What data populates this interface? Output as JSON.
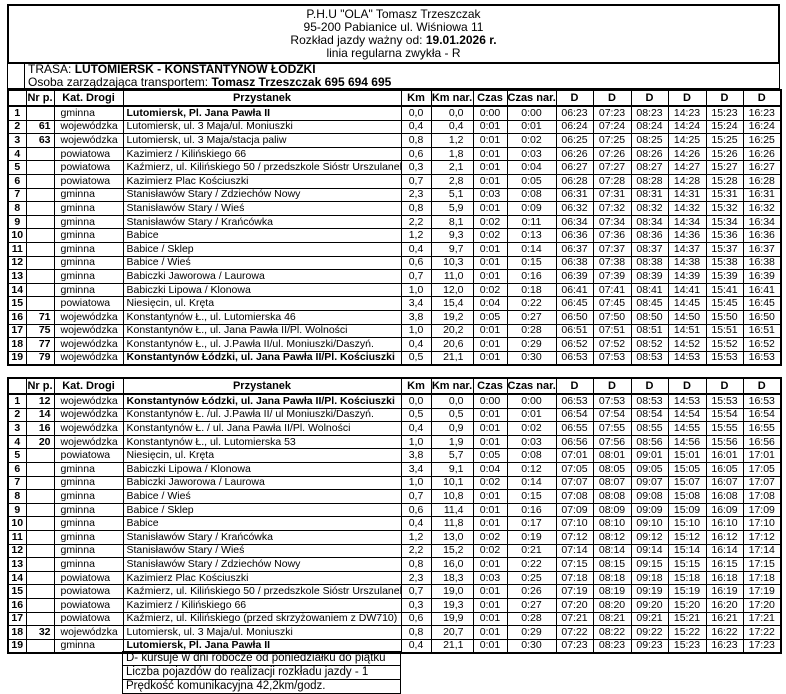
{
  "document": {
    "company": "P.H.U  \"OLA\" Tomasz Trzeszczak",
    "address": "95-200 Pabianice ul. Wiśniowa 11",
    "valid_from_label": "Rozkład jazdy ważny od:",
    "valid_from_date": "19.01.2026 r.",
    "line_type": "linia regularna zwykła - R"
  },
  "route": {
    "trasa_label": "TRASA:",
    "trasa_value": "LUTOMIERSK - KONSTANTYNÓW ŁÓDZKI",
    "manager_label": "Osoba zarządzająca transportem:",
    "manager_value": "Tomasz Trzeszczak 695 694 695"
  },
  "columns": [
    "",
    "Nr p.",
    "Kat. Drogi",
    "Przystanek",
    "Km",
    "Km nar.",
    "Czas",
    "Czas nar.",
    "D",
    "D",
    "D",
    "D",
    "D",
    "D"
  ],
  "tables": [
    {
      "rows": [
        {
          "no": "1",
          "nr": "",
          "kat": "gminna",
          "stop": "Lutomiersk, Pl. Jana Pawła II",
          "bold": true,
          "km": "0,0",
          "km_nar": "0,0",
          "czas": "0:00",
          "czas_nar": "0:00",
          "times": [
            "06:23",
            "07:23",
            "08:23",
            "14:23",
            "15:23",
            "16:23"
          ]
        },
        {
          "no": "2",
          "nr": "61",
          "kat": "wojewódzka",
          "stop": "Lutomiersk, ul. 3 Maja/ul. Moniuszki",
          "km": "0,4",
          "km_nar": "0,4",
          "czas": "0:01",
          "czas_nar": "0:01",
          "times": [
            "06:24",
            "07:24",
            "08:24",
            "14:24",
            "15:24",
            "16:24"
          ]
        },
        {
          "no": "3",
          "nr": "63",
          "kat": "wojewódzka",
          "stop": "Lutomiersk, ul. 3 Maja/stacja paliw",
          "km": "0,8",
          "km_nar": "1,2",
          "czas": "0:01",
          "czas_nar": "0:02",
          "times": [
            "06:25",
            "07:25",
            "08:25",
            "14:25",
            "15:25",
            "16:25"
          ]
        },
        {
          "no": "4",
          "nr": "",
          "kat": "powiatowa",
          "stop": "Kazimierz / Kilińskiego 66",
          "km": "0,6",
          "km_nar": "1,8",
          "czas": "0:01",
          "czas_nar": "0:03",
          "times": [
            "06:26",
            "07:26",
            "08:26",
            "14:26",
            "15:26",
            "16:26"
          ]
        },
        {
          "no": "5",
          "nr": "",
          "kat": "powiatowa",
          "stop": "Kaźmierz, ul. Kilińskiego 50 / przedszkole Sióstr Urszulanek",
          "km": "0,3",
          "km_nar": "2,1",
          "czas": "0:01",
          "czas_nar": "0:04",
          "times": [
            "06:27",
            "07:27",
            "08:27",
            "14:27",
            "15:27",
            "16:27"
          ]
        },
        {
          "no": "6",
          "nr": "",
          "kat": "powiatowa",
          "stop": "Kazimierz Plac Kościuszki",
          "km": "0,7",
          "km_nar": "2,8",
          "czas": "0:01",
          "czas_nar": "0:05",
          "times": [
            "06:28",
            "07:28",
            "08:28",
            "14:28",
            "15:28",
            "16:28"
          ]
        },
        {
          "no": "7",
          "nr": "",
          "kat": "gminna",
          "stop": "Stanisławów Stary / Zdziechów Nowy",
          "km": "2,3",
          "km_nar": "5,1",
          "czas": "0:03",
          "czas_nar": "0:08",
          "times": [
            "06:31",
            "07:31",
            "08:31",
            "14:31",
            "15:31",
            "16:31"
          ]
        },
        {
          "no": "8",
          "nr": "",
          "kat": "gminna",
          "stop": "Stanisławów Stary / Wieś",
          "km": "0,8",
          "km_nar": "5,9",
          "czas": "0:01",
          "czas_nar": "0:09",
          "times": [
            "06:32",
            "07:32",
            "08:32",
            "14:32",
            "15:32",
            "16:32"
          ]
        },
        {
          "no": "9",
          "nr": "",
          "kat": "gminna",
          "stop": "Stanisławów Stary / Krańcówka",
          "km": "2,2",
          "km_nar": "8,1",
          "czas": "0:02",
          "czas_nar": "0:11",
          "times": [
            "06:34",
            "07:34",
            "08:34",
            "14:34",
            "15:34",
            "16:34"
          ]
        },
        {
          "no": "10",
          "nr": "",
          "kat": "gminna",
          "stop": "Babice",
          "km": "1,2",
          "km_nar": "9,3",
          "czas": "0:02",
          "czas_nar": "0:13",
          "times": [
            "06:36",
            "07:36",
            "08:36",
            "14:36",
            "15:36",
            "16:36"
          ]
        },
        {
          "no": "11",
          "nr": "",
          "kat": "gminna",
          "stop": "Babice / Sklep",
          "km": "0,4",
          "km_nar": "9,7",
          "czas": "0:01",
          "czas_nar": "0:14",
          "times": [
            "06:37",
            "07:37",
            "08:37",
            "14:37",
            "15:37",
            "16:37"
          ]
        },
        {
          "no": "12",
          "nr": "",
          "kat": "gminna",
          "stop": "Babice / Wieś",
          "km": "0,6",
          "km_nar": "10,3",
          "czas": "0:01",
          "czas_nar": "0:15",
          "times": [
            "06:38",
            "07:38",
            "08:38",
            "14:38",
            "15:38",
            "16:38"
          ]
        },
        {
          "no": "13",
          "nr": "",
          "kat": "gminna",
          "stop": "Babiczki Jaworowa / Laurowa",
          "km": "0,7",
          "km_nar": "11,0",
          "czas": "0:01",
          "czas_nar": "0:16",
          "times": [
            "06:39",
            "07:39",
            "08:39",
            "14:39",
            "15:39",
            "16:39"
          ]
        },
        {
          "no": "14",
          "nr": "",
          "kat": "gminna",
          "stop": "Babiczki Lipowa / Klonowa",
          "km": "1,0",
          "km_nar": "12,0",
          "czas": "0:02",
          "czas_nar": "0:18",
          "times": [
            "06:41",
            "07:41",
            "08:41",
            "14:41",
            "15:41",
            "16:41"
          ]
        },
        {
          "no": "15",
          "nr": "",
          "kat": "powiatowa",
          "stop": "Niesięcin, ul. Kręta",
          "km": "3,4",
          "km_nar": "15,4",
          "czas": "0:04",
          "czas_nar": "0:22",
          "times": [
            "06:45",
            "07:45",
            "08:45",
            "14:45",
            "15:45",
            "16:45"
          ]
        },
        {
          "no": "16",
          "nr": "71",
          "kat": "wojewódzka",
          "stop": "Konstantynów Ł., ul. Lutomierska 46",
          "km": "3,8",
          "km_nar": "19,2",
          "czas": "0:05",
          "czas_nar": "0:27",
          "times": [
            "06:50",
            "07:50",
            "08:50",
            "14:50",
            "15:50",
            "16:50"
          ]
        },
        {
          "no": "17",
          "nr": "75",
          "kat": "wojewódzka",
          "stop": "Konstantynów Ł., ul. Jana Pawła II/Pl. Wolności",
          "km": "1,0",
          "km_nar": "20,2",
          "czas": "0:01",
          "czas_nar": "0:28",
          "times": [
            "06:51",
            "07:51",
            "08:51",
            "14:51",
            "15:51",
            "16:51"
          ]
        },
        {
          "no": "18",
          "nr": "77",
          "kat": "wojewódzka",
          "stop": "Konstantynów Ł., ul. J.Pawła II/ul. Moniuszki/Daszyń.",
          "km": "0,4",
          "km_nar": "20,6",
          "czas": "0:01",
          "czas_nar": "0:29",
          "times": [
            "06:52",
            "07:52",
            "08:52",
            "14:52",
            "15:52",
            "16:52"
          ]
        },
        {
          "no": "19",
          "nr": "79",
          "kat": "wojewódzka",
          "stop": "Konstantynów Łódzki, ul. Jana Pawła II/Pl. Kościuszki",
          "bold": true,
          "km": "0,5",
          "km_nar": "21,1",
          "czas": "0:01",
          "czas_nar": "0:30",
          "times": [
            "06:53",
            "07:53",
            "08:53",
            "14:53",
            "15:53",
            "16:53"
          ]
        }
      ]
    },
    {
      "rows": [
        {
          "no": "1",
          "nr": "12",
          "kat": "wojewódzka",
          "stop": "Konstantynów Łódzki, ul. Jana Pawła II/Pl. Kościuszki",
          "bold": true,
          "km": "0,0",
          "km_nar": "0,0",
          "czas": "0:00",
          "czas_nar": "0:00",
          "times": [
            "06:53",
            "07:53",
            "08:53",
            "14:53",
            "15:53",
            "16:53"
          ]
        },
        {
          "no": "2",
          "nr": "14",
          "kat": "wojewódzka",
          "stop": "Konstantynów Ł. /ul. J.Pawła II/ ul Moniuszki/Daszyń.",
          "km": "0,5",
          "km_nar": "0,5",
          "czas": "0:01",
          "czas_nar": "0:01",
          "times": [
            "06:54",
            "07:54",
            "08:54",
            "14:54",
            "15:54",
            "16:54"
          ]
        },
        {
          "no": "3",
          "nr": "16",
          "kat": "wojewódzka",
          "stop": "Konstantynów Ł. / ul. Jana Pawła II/Pl. Wolności",
          "km": "0,4",
          "km_nar": "0,9",
          "czas": "0:01",
          "czas_nar": "0:02",
          "times": [
            "06:55",
            "07:55",
            "08:55",
            "14:55",
            "15:55",
            "16:55"
          ]
        },
        {
          "no": "4",
          "nr": "20",
          "kat": "wojewódzka",
          "stop": "Konstantynów Ł., ul. Lutomierska 53",
          "km": "1,0",
          "km_nar": "1,9",
          "czas": "0:01",
          "czas_nar": "0:03",
          "times": [
            "06:56",
            "07:56",
            "08:56",
            "14:56",
            "15:56",
            "16:56"
          ]
        },
        {
          "no": "5",
          "nr": "",
          "kat": "powiatowa",
          "stop": "Niesięcin, ul. Kręta",
          "km": "3,8",
          "km_nar": "5,7",
          "czas": "0:05",
          "czas_nar": "0:08",
          "times": [
            "07:01",
            "08:01",
            "09:01",
            "15:01",
            "16:01",
            "17:01"
          ]
        },
        {
          "no": "6",
          "nr": "",
          "kat": "gminna",
          "stop": "Babiczki Lipowa / Klonowa",
          "km": "3,4",
          "km_nar": "9,1",
          "czas": "0:04",
          "czas_nar": "0:12",
          "times": [
            "07:05",
            "08:05",
            "09:05",
            "15:05",
            "16:05",
            "17:05"
          ]
        },
        {
          "no": "7",
          "nr": "",
          "kat": "gminna",
          "stop": "Babiczki Jaworowa / Laurowa",
          "km": "1,0",
          "km_nar": "10,1",
          "czas": "0:02",
          "czas_nar": "0:14",
          "times": [
            "07:07",
            "08:07",
            "09:07",
            "15:07",
            "16:07",
            "17:07"
          ]
        },
        {
          "no": "8",
          "nr": "",
          "kat": "gminna",
          "stop": "Babice / Wieś",
          "km": "0,7",
          "km_nar": "10,8",
          "czas": "0:01",
          "czas_nar": "0:15",
          "times": [
            "07:08",
            "08:08",
            "09:08",
            "15:08",
            "16:08",
            "17:08"
          ]
        },
        {
          "no": "9",
          "nr": "",
          "kat": "gminna",
          "stop": "Babice / Sklep",
          "km": "0,6",
          "km_nar": "11,4",
          "czas": "0:01",
          "czas_nar": "0:16",
          "times": [
            "07:09",
            "08:09",
            "09:09",
            "15:09",
            "16:09",
            "17:09"
          ]
        },
        {
          "no": "10",
          "nr": "",
          "kat": "gminna",
          "stop": "Babice",
          "km": "0,4",
          "km_nar": "11,8",
          "czas": "0:01",
          "czas_nar": "0:17",
          "times": [
            "07:10",
            "08:10",
            "09:10",
            "15:10",
            "16:10",
            "17:10"
          ]
        },
        {
          "no": "11",
          "nr": "",
          "kat": "gminna",
          "stop": "Stanisławów Stary / Krańcówka",
          "km": "1,2",
          "km_nar": "13,0",
          "czas": "0:02",
          "czas_nar": "0:19",
          "times": [
            "07:12",
            "08:12",
            "09:12",
            "15:12",
            "16:12",
            "17:12"
          ]
        },
        {
          "no": "12",
          "nr": "",
          "kat": "gminna",
          "stop": "Stanisławów Stary / Wieś",
          "km": "2,2",
          "km_nar": "15,2",
          "czas": "0:02",
          "czas_nar": "0:21",
          "times": [
            "07:14",
            "08:14",
            "09:14",
            "15:14",
            "16:14",
            "17:14"
          ]
        },
        {
          "no": "13",
          "nr": "",
          "kat": "gminna",
          "stop": "Stanisławów Stary / Zdziechów Nowy",
          "km": "0,8",
          "km_nar": "16,0",
          "czas": "0:01",
          "czas_nar": "0:22",
          "times": [
            "07:15",
            "08:15",
            "09:15",
            "15:15",
            "16:15",
            "17:15"
          ]
        },
        {
          "no": "14",
          "nr": "",
          "kat": "powiatowa",
          "stop": "Kazimierz Plac Kościuszki",
          "km": "2,3",
          "km_nar": "18,3",
          "czas": "0:03",
          "czas_nar": "0:25",
          "times": [
            "07:18",
            "08:18",
            "09:18",
            "15:18",
            "16:18",
            "17:18"
          ]
        },
        {
          "no": "15",
          "nr": "",
          "kat": "powiatowa",
          "stop": "Kaźmierz, ul. Kilińskiego 50 / przedszkole Sióstr Urszulanek",
          "km": "0,7",
          "km_nar": "19,0",
          "czas": "0:01",
          "czas_nar": "0:26",
          "times": [
            "07:19",
            "08:19",
            "09:19",
            "15:19",
            "16:19",
            "17:19"
          ]
        },
        {
          "no": "16",
          "nr": "",
          "kat": "powiatowa",
          "stop": "Kazimierz / Kilińskiego 66",
          "km": "0,3",
          "km_nar": "19,3",
          "czas": "0:01",
          "czas_nar": "0:27",
          "times": [
            "07:20",
            "08:20",
            "09:20",
            "15:20",
            "16:20",
            "17:20"
          ]
        },
        {
          "no": "17",
          "nr": "",
          "kat": "powiatowa",
          "stop": "Kaźmierz, ul. Kilińskiego (przed skrzyżowaniem z DW710)",
          "km": "0,6",
          "km_nar": "19,9",
          "czas": "0:01",
          "czas_nar": "0:28",
          "times": [
            "07:21",
            "08:21",
            "09:21",
            "15:21",
            "16:21",
            "17:21"
          ]
        },
        {
          "no": "18",
          "nr": "32",
          "kat": "wojewódzka",
          "stop": "Lutomiersk, ul. 3 Maja/ul. Moniuszki",
          "km": "0,8",
          "km_nar": "20,7",
          "czas": "0:01",
          "czas_nar": "0:29",
          "times": [
            "07:22",
            "08:22",
            "09:22",
            "15:22",
            "16:22",
            "17:22"
          ]
        },
        {
          "no": "19",
          "nr": "",
          "kat": "gminna",
          "stop": "Lutomiersk, Pl. Jana Pawła II",
          "bold": true,
          "km": "0,4",
          "km_nar": "21,1",
          "czas": "0:01",
          "czas_nar": "0:30",
          "times": [
            "07:23",
            "08:23",
            "09:23",
            "15:23",
            "16:23",
            "17:23"
          ]
        }
      ]
    }
  ],
  "footer": {
    "lines": [
      "D- kursuje w dni robocze od poniedziałku do piątku",
      "Liczba pojazdów do realizacji rozkładu jazdy - 1",
      "Prędkość komunikacyjna 42,2km/godz."
    ]
  }
}
